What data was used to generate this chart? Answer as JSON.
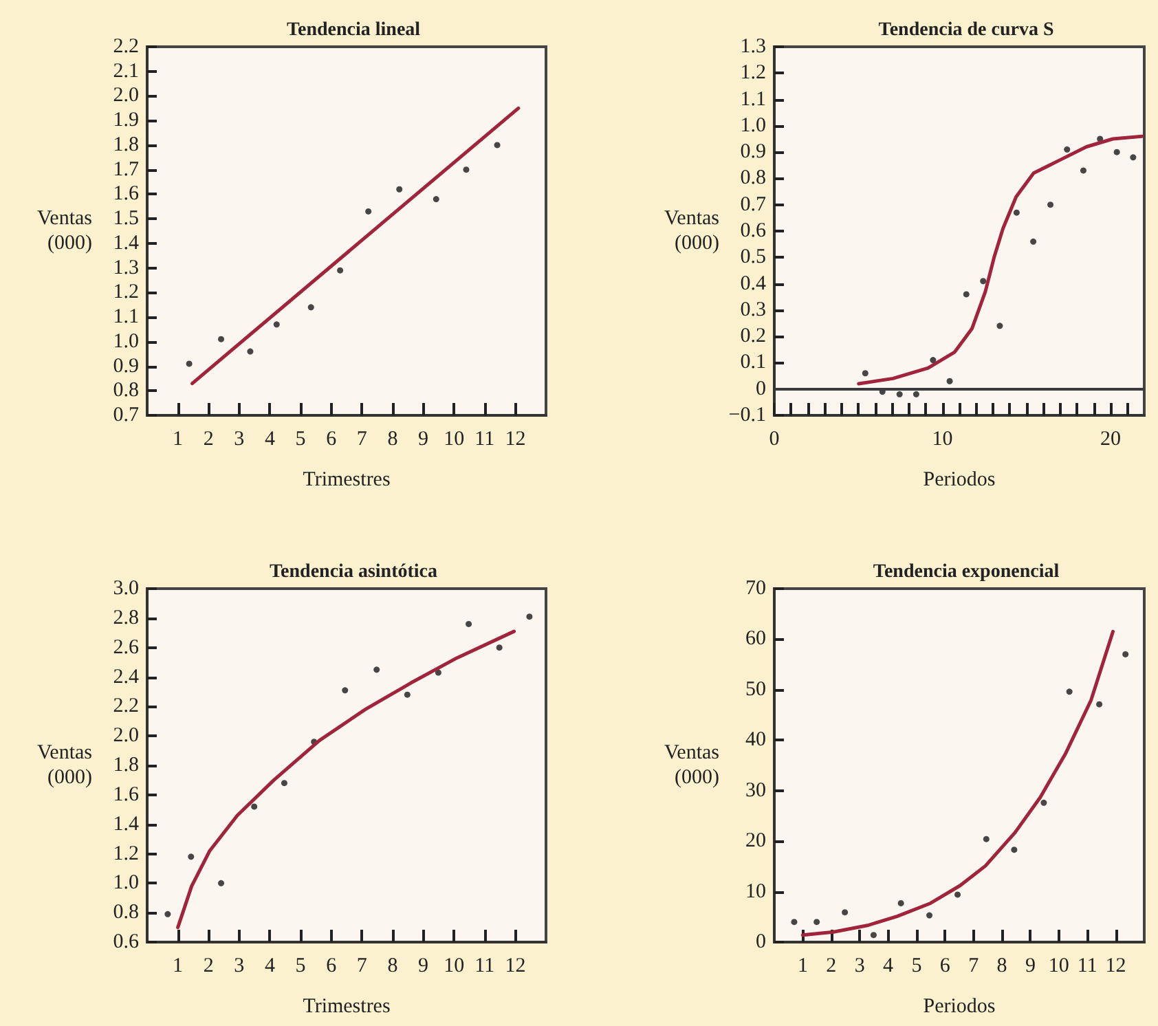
{
  "chart_data": [
    {
      "type": "scatter",
      "title": "Tendencia lineal",
      "xlabel": "Trimestres",
      "ylabel": "Ventas (000)",
      "grid": false,
      "marker": "circle",
      "xlim": [
        0,
        13
      ],
      "xticks": [
        1,
        2,
        3,
        4,
        5,
        6,
        7,
        8,
        9,
        10,
        11,
        12
      ],
      "ylim": [
        0.7,
        2.2
      ],
      "yticks": [
        0.7,
        0.8,
        0.9,
        {
          "value": 1.0,
          "label": "1.0"
        },
        1.1,
        1.2,
        1.3,
        1.4,
        1.5,
        1.6,
        1.7,
        1.8,
        1.9,
        {
          "value": 2.0,
          "label": "2.0"
        },
        2.1,
        2.2
      ],
      "series": [
        {
          "color": "#1a1a1a",
          "x": [
            1.37,
            2.41,
            3.36,
            4.22,
            5.34,
            6.29,
            7.21,
            8.22,
            9.42,
            10.4,
            11.41
          ],
          "values": [
            0.91,
            1.01,
            0.96,
            1.07,
            1.14,
            1.29,
            1.53,
            1.62,
            1.58,
            1.7,
            1.8
          ]
        },
        {
          "type": "line",
          "color": "#a0243c",
          "marker": "none",
          "x": [
            1.47,
            12.1
          ],
          "values": [
            0.83,
            1.95
          ]
        }
      ]
    },
    {
      "type": "scatter",
      "title": "Tendencia de curva S",
      "xlabel": "Periodos",
      "ylabel": "Ventas (000)",
      "grid": false,
      "marker": "circle",
      "xlim": [
        0,
        22
      ],
      "xticks": [
        0,
        {
          "value": 1,
          "label": null
        },
        {
          "value": 2,
          "label": null
        },
        {
          "value": 3,
          "label": null
        },
        {
          "value": 4,
          "label": null
        },
        {
          "value": 5,
          "label": null
        },
        {
          "value": 6,
          "label": null
        },
        {
          "value": 7,
          "label": null
        },
        {
          "value": 8,
          "label": null
        },
        {
          "value": 9,
          "label": null
        },
        10,
        {
          "value": 11,
          "label": null
        },
        {
          "value": 12,
          "label": null
        },
        {
          "value": 13,
          "label": null
        },
        {
          "value": 14,
          "label": null
        },
        {
          "value": 15,
          "label": null
        },
        {
          "value": 16,
          "label": null
        },
        {
          "value": 17,
          "label": null
        },
        {
          "value": 18,
          "label": null
        },
        {
          "value": 19,
          "label": null
        },
        20,
        {
          "value": 21,
          "label": null
        }
      ],
      "ylim": [
        -0.1,
        1.3
      ],
      "yticks": [
        {
          "value": -0.1,
          "label": "−0.1"
        },
        0,
        0.1,
        0.2,
        0.3,
        0.4,
        0.5,
        0.6,
        0.7,
        0.8,
        0.9,
        {
          "value": 1.0,
          "label": "1.0"
        },
        1.1,
        1.2,
        1.3
      ],
      "ref_lines": [
        {
          "axis": "y",
          "value": 0,
          "color": "#3a3a3a"
        }
      ],
      "series": [
        {
          "color": "#1a1a1a",
          "x": [
            5.41,
            6.43,
            7.45,
            8.44,
            9.44,
            10.43,
            11.42,
            12.42,
            13.41,
            14.41,
            15.4,
            16.42,
            17.41,
            18.38,
            19.37,
            20.37,
            21.34
          ],
          "values": [
            0.06,
            -0.01,
            -0.02,
            -0.02,
            0.11,
            0.03,
            0.36,
            0.41,
            0.24,
            0.67,
            0.56,
            0.7,
            0.91,
            0.83,
            0.95,
            0.9,
            0.88
          ]
        },
        {
          "type": "line",
          "color": "#a0243c",
          "marker": "none",
          "x": [
            5.02,
            7.06,
            9.15,
            10.72,
            11.76,
            12.55,
            13.07,
            13.6,
            14.38,
            15.42,
            16.99,
            18.56,
            20.13,
            21.86
          ],
          "values": [
            0.02,
            0.04,
            0.08,
            0.14,
            0.23,
            0.37,
            0.5,
            0.61,
            0.73,
            0.82,
            0.87,
            0.92,
            0.95,
            0.96
          ]
        }
      ]
    },
    {
      "type": "scatter",
      "title": "Tendencia asintótica",
      "xlabel": "Trimestres",
      "ylabel": "Ventas (000)",
      "grid": false,
      "marker": "circle",
      "xlim": [
        0,
        13
      ],
      "xticks": [
        1,
        2,
        3,
        4,
        5,
        6,
        7,
        8,
        9,
        10,
        11,
        12
      ],
      "ylim": [
        0.6,
        3.0
      ],
      "yticks": [
        0.6,
        0.8,
        {
          "value": 1.0,
          "label": "1.0"
        },
        1.2,
        1.4,
        1.6,
        1.8,
        {
          "value": 2.0,
          "label": "2.0"
        },
        2.2,
        2.4,
        2.6,
        2.8,
        {
          "value": 3.0,
          "label": "3.0"
        }
      ],
      "series": [
        {
          "color": "#1a1a1a",
          "x": [
            0.67,
            1.43,
            2.41,
            3.49,
            4.47,
            5.44,
            6.45,
            7.48,
            8.48,
            9.49,
            10.48,
            11.48,
            12.46
          ],
          "values": [
            0.79,
            1.18,
            1.0,
            1.52,
            1.68,
            1.96,
            2.31,
            2.45,
            2.28,
            2.43,
            2.76,
            2.6,
            2.81
          ]
        },
        {
          "type": "line",
          "color": "#a0243c",
          "marker": "none",
          "x": [
            1,
            1.45,
            2.04,
            2.94,
            4.13,
            5.62,
            7.11,
            8.6,
            10.1,
            11.96
          ],
          "values": [
            0.7,
            0.98,
            1.22,
            1.46,
            1.7,
            1.97,
            2.18,
            2.36,
            2.53,
            2.71
          ]
        }
      ]
    },
    {
      "type": "scatter",
      "title": "Tendencia exponencial",
      "xlabel": "Periodos",
      "ylabel": "Ventas (000)",
      "grid": false,
      "marker": "circle",
      "xlim": [
        0,
        13
      ],
      "xticks": [
        1,
        2,
        3,
        4,
        5,
        6,
        7,
        8,
        9,
        10,
        11,
        12
      ],
      "ylim": [
        0,
        70
      ],
      "yticks": [
        0,
        10,
        20,
        30,
        40,
        50,
        60,
        70
      ],
      "series": [
        {
          "color": "#1a1a1a",
          "x": [
            0.7,
            1.49,
            2.48,
            3.49,
            4.45,
            5.45,
            6.44,
            7.45,
            8.43,
            9.47,
            10.37,
            11.42,
            12.34
          ],
          "values": [
            4.0,
            4.0,
            5.9,
            1.4,
            7.7,
            5.3,
            9.4,
            20.4,
            18.3,
            27.6,
            49.6,
            47.1,
            57.0
          ]
        },
        {
          "type": "line",
          "color": "#a0243c",
          "marker": "none",
          "x": [
            1,
            2.08,
            3.27,
            4.31,
            5.49,
            6.53,
            7.42,
            8.46,
            9.35,
            10.24,
            11.13,
            11.9
          ],
          "values": [
            1.4,
            2.0,
            3.3,
            5.1,
            7.7,
            11.2,
            15.1,
            21.7,
            28.7,
            37.4,
            47.9,
            61.5
          ]
        }
      ]
    }
  ]
}
